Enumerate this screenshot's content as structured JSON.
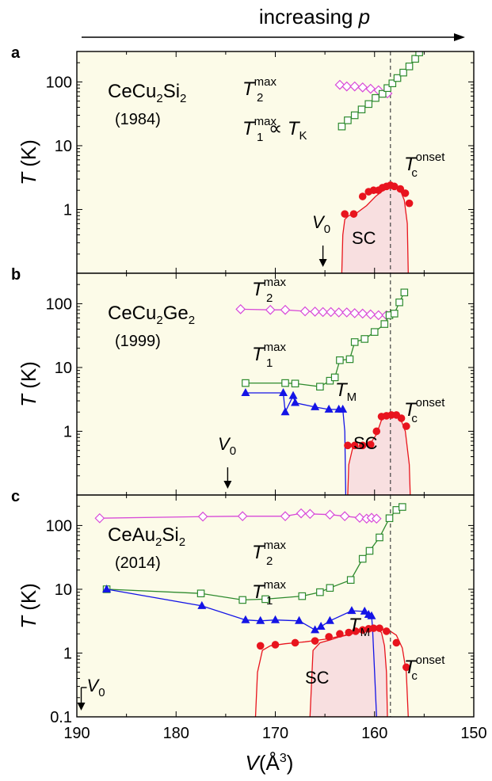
{
  "header": {
    "text": "increasing ",
    "var": "p"
  },
  "x_axis": {
    "label_var": "V",
    "label_unit": "(Å",
    "label_exp": "3",
    "label_close": ")",
    "ticks": [
      "190",
      "180",
      "170",
      "160",
      "150"
    ]
  },
  "y_ticks": [
    "100",
    "10",
    "1",
    "0.1"
  ],
  "y_label": {
    "var": "T",
    "unit": " (K)"
  },
  "colors": {
    "bg": "#fcfbe8",
    "sc_fill": "#f8dfe0",
    "T2": "#d84bd8",
    "T1": "#2d8a2d",
    "TM": "#1414e6",
    "Tc": "#e8141e",
    "dash": "#444444"
  },
  "chart_data": [
    {
      "type": "scatter",
      "panel": "a",
      "compound": {
        "pre": "CeCu",
        "s1": "2",
        "mid": "Si",
        "s2": "2"
      },
      "year": "(1984)",
      "xlim": [
        190,
        150
      ],
      "ylim": [
        0.1,
        300
      ],
      "yscale": "log",
      "labels": {
        "T2": {
          "var": "T",
          "sub": "2",
          "sup": "max"
        },
        "T1": {
          "var": "T",
          "sub": "1",
          "sup": "max",
          "prop": " ∝ ",
          "var2": "T",
          "sub2": "K"
        },
        "Tc": {
          "var": "T",
          "sub": "c",
          "sup": "onset"
        },
        "sc": "SC",
        "V0": {
          "var": "V",
          "sub": "0"
        }
      },
      "dashed_v": 158.4,
      "V0_at": 165.2,
      "series": [
        {
          "name": "T2max",
          "marker": "diamond-open",
          "x": [
            163.5,
            162.8,
            162,
            161.2,
            160.4,
            159.6,
            158.7
          ],
          "y": [
            90,
            85,
            85,
            82,
            78,
            74,
            66
          ]
        },
        {
          "name": "T1max",
          "marker": "square-open",
          "x": [
            163.3,
            162.7,
            162,
            161.3,
            160.6,
            159.9,
            159.2,
            158.7,
            158.2,
            157.7,
            157.1,
            156.5,
            155.9,
            155.5
          ],
          "y": [
            20,
            25,
            30,
            37,
            45,
            56,
            65,
            80,
            95,
            115,
            140,
            175,
            230,
            290
          ]
        },
        {
          "name": "Tc",
          "marker": "circle-filled",
          "x": [
            163,
            162.1,
            161.2,
            160.6,
            160.1,
            159.6,
            159.2,
            158.8,
            158.4,
            158,
            157.4,
            156.9,
            156.5
          ],
          "y": [
            0.85,
            0.85,
            1.6,
            1.9,
            2.0,
            2.0,
            2.2,
            2.3,
            2.4,
            2.3,
            2.1,
            1.8,
            1.25
          ]
        }
      ],
      "sc_dome": {
        "x": [
          163.3,
          163.2,
          163,
          162.6,
          161.8,
          160.8,
          159.9,
          159.2,
          158.6,
          158,
          157.4,
          157,
          156.7,
          156.6
        ],
        "y": [
          0.1,
          0.4,
          0.7,
          0.8,
          0.88,
          1.15,
          1.6,
          1.95,
          2.2,
          2.3,
          2.0,
          1.4,
          0.6,
          0.1
        ]
      }
    },
    {
      "type": "scatter",
      "panel": "b",
      "compound": {
        "pre": "CeCu",
        "s1": "2",
        "mid": "Ge",
        "s2": "2"
      },
      "year": "(1999)",
      "xlim": [
        190,
        150
      ],
      "ylim": [
        0.1,
        300
      ],
      "yscale": "log",
      "labels": {
        "T2": {
          "var": "T",
          "sub": "2",
          "sup": "max"
        },
        "T1": {
          "var": "T",
          "sub": "1",
          "sup": "max"
        },
        "TM": {
          "var": "T",
          "sub": "M"
        },
        "Tc": {
          "var": "T",
          "sub": "c",
          "sup": "onset"
        },
        "sc": "SC",
        "V0": {
          "var": "V",
          "sub": "0"
        }
      },
      "dashed_v": 158.4,
      "V0_at": 174.8,
      "series": [
        {
          "name": "T2max",
          "marker": "diamond-open",
          "x": [
            173.5,
            170.5,
            169,
            167,
            166,
            165.2,
            164.4,
            163.6,
            162.8,
            162,
            161.2,
            160.4,
            159.6,
            158.8
          ],
          "y": [
            82,
            80,
            80,
            76,
            75,
            74,
            74,
            73,
            73,
            71,
            70,
            68,
            66,
            66
          ]
        },
        {
          "name": "T1max",
          "marker": "square-open",
          "x": [
            173,
            169,
            168,
            165.5,
            164.5,
            164,
            163.5,
            162.5,
            162,
            161,
            160,
            159,
            158.5,
            158,
            157.5,
            157
          ],
          "y": [
            5.7,
            5.7,
            5.6,
            5.0,
            6.2,
            7.0,
            13,
            13.5,
            25,
            28,
            36,
            48,
            66,
            70,
            105,
            150
          ]
        },
        {
          "name": "TM",
          "marker": "triangle-filled",
          "x": [
            173,
            169.2,
            169,
            168.2,
            168,
            166,
            164.6,
            163.6,
            163.2
          ],
          "y": [
            4.0,
            4.0,
            2.0,
            3.6,
            2.8,
            2.4,
            2.2,
            2.2,
            2.2
          ]
        },
        {
          "name": "Tc",
          "marker": "circle-filled",
          "x": [
            162.7,
            162,
            161.2,
            160.4,
            159.8,
            159.3,
            158.8,
            158.3,
            157.8,
            157.3,
            156.8
          ],
          "y": [
            0.6,
            0.6,
            0.6,
            0.62,
            1.0,
            1.7,
            1.75,
            1.8,
            1.8,
            1.6,
            1.2
          ]
        }
      ],
      "sc_dome": {
        "x": [
          162.7,
          162.6,
          162.2,
          161.4,
          160.5,
          159.8,
          159.3,
          158.7,
          158,
          157.4,
          156.9,
          156.5,
          156.4
        ],
        "y": [
          0.1,
          0.3,
          0.55,
          0.58,
          0.62,
          0.9,
          1.5,
          1.75,
          1.8,
          1.6,
          1.0,
          0.3,
          0.1
        ]
      }
    },
    {
      "type": "scatter",
      "panel": "c",
      "compound": {
        "pre": "CeAu",
        "s1": "2",
        "mid": "Si",
        "s2": "2"
      },
      "year": "(2014)",
      "xlim": [
        190,
        150
      ],
      "ylim": [
        0.1,
        300
      ],
      "yscale": "log",
      "labels": {
        "T2": {
          "var": "T",
          "sub": "2",
          "sup": "max"
        },
        "T1": {
          "var": "T",
          "sub": "1",
          "sup": "max"
        },
        "TM": {
          "var": "T",
          "sub": "M"
        },
        "Tc": {
          "var": "T",
          "sub": "c",
          "sup": "onset"
        },
        "sc": "SC",
        "V0": {
          "var": "V",
          "sub": "0"
        }
      },
      "dashed_v": 158.4,
      "V0_at": 189.8,
      "series": [
        {
          "name": "T2max",
          "marker": "diamond-open",
          "x": [
            187.7,
            177.3,
            173.3,
            169,
            167.4,
            166.5,
            164.5,
            163,
            161.5,
            160.8,
            160.3,
            159.8
          ],
          "y": [
            130,
            138,
            140,
            140,
            155,
            152,
            148,
            140,
            132,
            128,
            132,
            128
          ]
        },
        {
          "name": "T1max",
          "marker": "square-open",
          "x": [
            187,
            177.5,
            173.3,
            171,
            167.3,
            165.5,
            164.5,
            162.4,
            161.2,
            160.5,
            159.5,
            158.5,
            157.8,
            157.2
          ],
          "y": [
            10,
            8.6,
            6.8,
            7.0,
            7.8,
            9.0,
            10.5,
            14,
            30,
            40,
            65,
            130,
            175,
            195
          ]
        },
        {
          "name": "TM",
          "marker": "triangle-filled",
          "x": [
            187,
            177.4,
            173,
            171.5,
            170,
            167.6,
            166,
            165.4,
            164.5,
            162.3,
            161,
            160.6,
            160.3
          ],
          "y": [
            10,
            5.5,
            3.3,
            3.2,
            3.3,
            3.2,
            2.3,
            2.6,
            3.2,
            4.6,
            4.5,
            4.0,
            3.8
          ]
        },
        {
          "name": "Tc",
          "marker": "circle-filled",
          "x": [
            171.5,
            170,
            168,
            166,
            164.6,
            163.5,
            162.6,
            161.9,
            161.2,
            160.6,
            160.1,
            159.5,
            158.8,
            157.8,
            156.8
          ],
          "y": [
            1.3,
            1.35,
            1.45,
            1.55,
            1.8,
            2.0,
            2.1,
            2.2,
            2.3,
            2.4,
            2.45,
            2.45,
            2.2,
            1.45,
            0.6
          ]
        }
      ],
      "sc_dome": {
        "x": [
          166.5,
          166.2,
          165.5,
          164.5,
          163.5,
          162.5,
          161.5,
          160.5,
          159.8,
          159.3,
          159.0,
          158.8,
          158.7
        ],
        "y": [
          0.1,
          1.1,
          1.45,
          1.6,
          1.8,
          1.95,
          2.2,
          2.35,
          2.4,
          2.1,
          1.3,
          0.5,
          0.1
        ]
      },
      "tc_outline_x": [
        172,
        171.8,
        171.3,
        170.5,
        169,
        167,
        165,
        163,
        161.5,
        160.5,
        159.5,
        158.6,
        157.8,
        157.2,
        156.8,
        156.6
      ],
      "tc_outline_y": [
        0.1,
        0.5,
        1.1,
        1.3,
        1.4,
        1.5,
        1.65,
        1.9,
        2.15,
        2.35,
        2.4,
        2.3,
        1.9,
        1.2,
        0.5,
        0.1
      ],
      "tm_drop": {
        "x": [
          160.3,
          160.2,
          160.0,
          159.8
        ],
        "y": [
          3.8,
          2.5,
          0.5,
          0.1
        ]
      }
    }
  ]
}
